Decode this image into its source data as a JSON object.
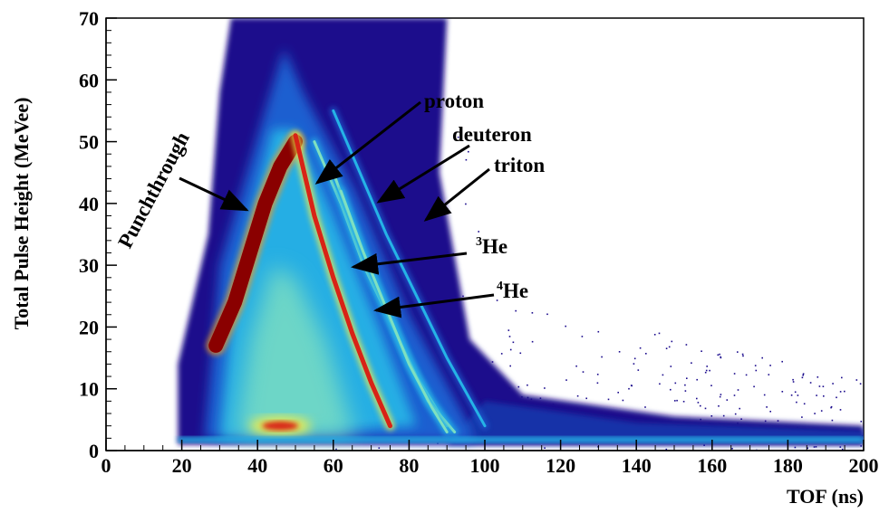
{
  "chart_data": {
    "type": "heatmap",
    "title": "",
    "xlabel": "TOF (ns)",
    "ylabel": "Total Pulse Height (MeVee)",
    "xlim": [
      0,
      200
    ],
    "ylim": [
      0,
      70
    ],
    "x_ticks": [
      "0",
      "20",
      "40",
      "60",
      "80",
      "100",
      "120",
      "140",
      "160",
      "180",
      "200"
    ],
    "y_ticks": [
      "0",
      "10",
      "20",
      "30",
      "40",
      "50",
      "60",
      "70"
    ],
    "grid": false,
    "colormap": [
      "#1a0a8c",
      "#1f5fd0",
      "#25b3e6",
      "#7fe0c0",
      "#f2ee4a",
      "#f59a1e",
      "#d82316",
      "#8a0000"
    ],
    "bands": [
      {
        "name": "Punchthrough",
        "points": [
          [
            29,
            17
          ],
          [
            34,
            24
          ],
          [
            38,
            32
          ],
          [
            42,
            40
          ],
          [
            46,
            46
          ],
          [
            50,
            50
          ]
        ]
      },
      {
        "name": "proton",
        "points": [
          [
            50,
            51
          ],
          [
            55,
            38
          ],
          [
            60,
            28
          ],
          [
            65,
            19
          ],
          [
            70,
            11
          ],
          [
            75,
            4
          ]
        ]
      },
      {
        "name": "deuteron",
        "points": [
          [
            55,
            50
          ],
          [
            62,
            40
          ],
          [
            68,
            30
          ],
          [
            75,
            21
          ],
          [
            82,
            12
          ],
          [
            90,
            4
          ]
        ]
      },
      {
        "name": "triton",
        "points": [
          [
            60,
            55
          ],
          [
            67,
            45
          ],
          [
            74,
            35
          ],
          [
            82,
            25
          ],
          [
            90,
            15
          ],
          [
            100,
            4
          ]
        ]
      },
      {
        "name": "3He",
        "points": [
          [
            60,
            45
          ],
          [
            66,
            35
          ],
          [
            72,
            26
          ],
          [
            78,
            17
          ],
          [
            85,
            8
          ],
          [
            92,
            3
          ]
        ]
      },
      {
        "name": "4He",
        "points": [
          [
            62,
            42
          ],
          [
            68,
            32
          ],
          [
            74,
            23
          ],
          [
            80,
            14
          ],
          [
            86,
            7
          ],
          [
            90,
            3
          ]
        ]
      }
    ],
    "annotations": [
      {
        "text": "Punchthrough",
        "x": 30,
        "y": 38
      },
      {
        "text": "proton",
        "x": 85,
        "y": 57
      },
      {
        "text": "deuteron",
        "x": 93,
        "y": 51
      },
      {
        "text": "triton",
        "x": 103,
        "y": 47
      },
      {
        "sup": "3",
        "text": "He",
        "x": 107,
        "y": 32
      },
      {
        "sup": "4",
        "text": "He",
        "x": 107,
        "y": 26
      }
    ]
  }
}
